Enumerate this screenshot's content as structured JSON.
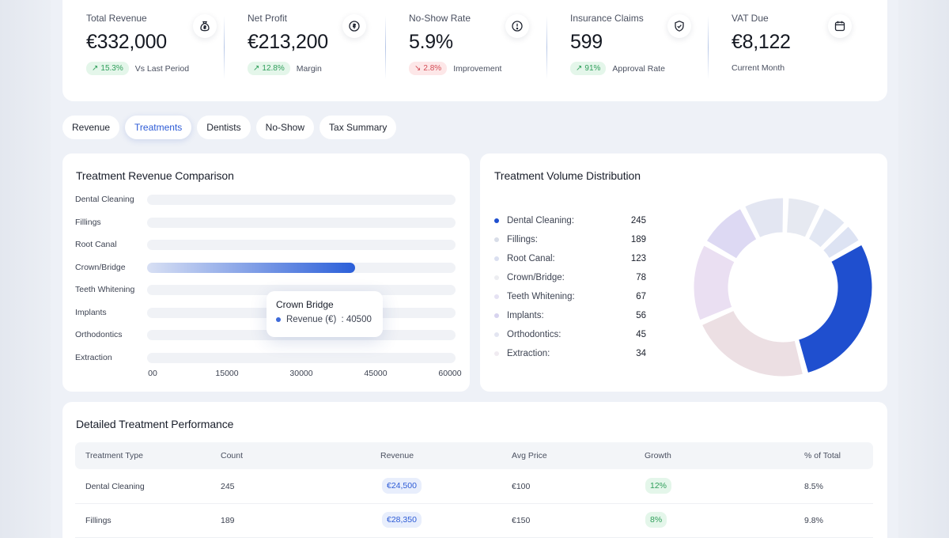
{
  "kpis": [
    {
      "title": "Total Revenue",
      "value": "€332,000",
      "pill": "15.3%",
      "pill_dir": "up",
      "note": "Vs Last Period",
      "icon": "money-bag-icon"
    },
    {
      "title": "Net Profit",
      "value": "€213,200",
      "pill": "12.8%",
      "pill_dir": "up",
      "note": "Margin",
      "icon": "coin-icon"
    },
    {
      "title": "No-Show Rate",
      "value": "5.9%",
      "pill": "2.8%",
      "pill_dir": "down",
      "note": "Improvement",
      "icon": "alert-circle-icon"
    },
    {
      "title": "Insurance Claims",
      "value": "599",
      "pill": "91%",
      "pill_dir": "up",
      "note": "Approval Rate",
      "icon": "shield-check-icon"
    },
    {
      "title": "VAT Due",
      "value": "€8,122",
      "pill": "",
      "pill_dir": "",
      "note": "Current Month",
      "icon": "calendar-icon"
    }
  ],
  "tabs": [
    {
      "label": "Revenue",
      "active": false
    },
    {
      "label": "Treatments",
      "active": true
    },
    {
      "label": "Dentists",
      "active": false
    },
    {
      "label": "No-Show",
      "active": false
    },
    {
      "label": "Tax Summary",
      "active": false
    }
  ],
  "revenue_chart": {
    "title": "Treatment Revenue Comparison",
    "tooltip": {
      "title": "Crown Bridge",
      "series": "Revenue (€)",
      "value": "40500"
    }
  },
  "volume_chart": {
    "title": "Treatment Volume Distribution"
  },
  "chart_data": [
    {
      "type": "bar",
      "orientation": "horizontal",
      "title": "Treatment Revenue Comparison",
      "categories": [
        "Dental Cleaning",
        "Fillings",
        "Root Canal",
        "Crown/Bridge",
        "Teeth Whitening",
        "Implants",
        "Orthodontics",
        "Extraction"
      ],
      "series": [
        {
          "name": "Revenue (€)",
          "values": [
            null,
            null,
            null,
            40500,
            null,
            null,
            null,
            null
          ]
        }
      ],
      "highlighted": "Crown/Bridge",
      "xticks": [
        "00",
        "15000",
        "30000",
        "45000",
        "60000"
      ],
      "xlim": [
        0,
        60000
      ],
      "colors": {
        "bar": "#2b5fd9",
        "track": "#f0f2f6"
      }
    },
    {
      "type": "pie",
      "variant": "donut",
      "title": "Treatment Volume Distribution",
      "categories": [
        "Dental Cleaning",
        "Fillings",
        "Root Canal",
        "Crown/Bridge",
        "Teeth Whitening",
        "Implants",
        "Orthodontics",
        "Extraction"
      ],
      "values": [
        245,
        189,
        123,
        78,
        67,
        56,
        45,
        34
      ],
      "labels": [
        "Dental Cleaning:",
        "Fillings:",
        "Root Canal:",
        "Crown/Bridge:",
        "Teeth Whitening:",
        "Implants:",
        "Orthodontics:",
        "Extraction:"
      ],
      "colors": [
        "#1f4fcf",
        "#ecdfe3",
        "#eadff2",
        "#ddd9f3",
        "#e3e6f2",
        "#e6e9f1",
        "#e2e7f3",
        "#dde3f3"
      ],
      "legend_dot_colors": [
        "#1f4fcf",
        "#d8dde8",
        "#dadff0",
        "#ecedf1",
        "#e5e2f3",
        "#d7d3ef",
        "#e3e5f1",
        "#f0ebf1"
      ],
      "legend": "left"
    }
  ],
  "table": {
    "title": "Detailed Treatment Performance",
    "columns": [
      "Treatment Type",
      "Count",
      "Revenue",
      "Avg Price",
      "Growth",
      "% of Total"
    ],
    "rows": [
      {
        "type": "Dental Cleaning",
        "count": "245",
        "revenue": "€24,500",
        "avg": "€100",
        "growth": "12%",
        "pct": "8.5%"
      },
      {
        "type": "Fillings",
        "count": "189",
        "revenue": "€28,350",
        "avg": "€150",
        "growth": "8%",
        "pct": "9.8%"
      }
    ]
  }
}
